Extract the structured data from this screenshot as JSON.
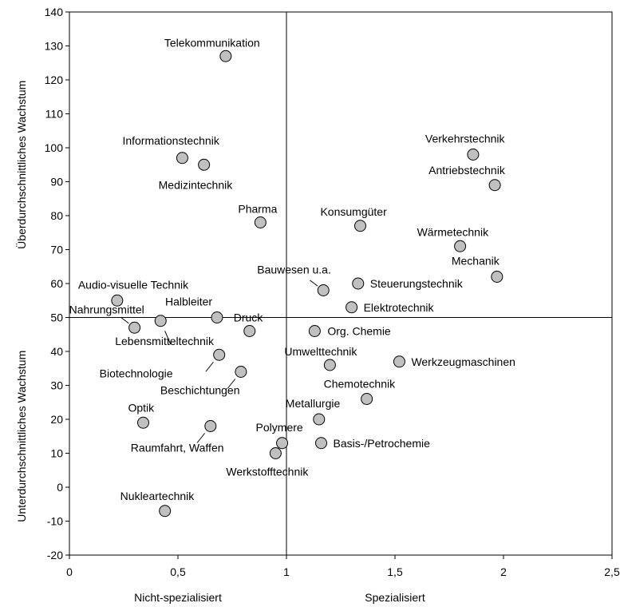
{
  "chart_data": {
    "type": "scatter",
    "xlim": [
      0,
      2.5
    ],
    "ylim": [
      -20,
      140
    ],
    "x_ticks": [
      0,
      0.5,
      1,
      1.5,
      2,
      2.5
    ],
    "x_tick_labels": [
      "0",
      "0,5",
      "1",
      "1,5",
      "2",
      "2,5"
    ],
    "y_ticks": [
      -20,
      -10,
      0,
      10,
      20,
      30,
      40,
      50,
      60,
      70,
      80,
      90,
      100,
      110,
      120,
      130,
      140
    ],
    "reference_lines": {
      "x": 1,
      "y": 50
    },
    "x_axis_labels": {
      "left": "Nicht-spezialisiert",
      "right": "Spezialisiert"
    },
    "y_axis_labels": {
      "upper": "Überdurchschnittliches Wachstum",
      "lower": "Unterdurchschnittliches Wachstum"
    },
    "marker_fill": "#c0c0c0",
    "marker_stroke": "#000000",
    "points": [
      {
        "label": "Telekommunikation",
        "x": 0.72,
        "y": 127
      },
      {
        "label": "Informationstechnik",
        "x": 0.52,
        "y": 97
      },
      {
        "label": "Medizintechnik",
        "x": 0.62,
        "y": 95
      },
      {
        "label": "Pharma",
        "x": 0.88,
        "y": 78
      },
      {
        "label": "Verkehrstechnik",
        "x": 1.86,
        "y": 98
      },
      {
        "label": "Antriebstechnik",
        "x": 1.96,
        "y": 89
      },
      {
        "label": "Konsumgüter",
        "x": 1.34,
        "y": 77
      },
      {
        "label": "Wärmetechnik",
        "x": 1.8,
        "y": 71
      },
      {
        "label": "Mechanik",
        "x": 1.97,
        "y": 62
      },
      {
        "label": "Bauwesen u.a.",
        "x": 1.17,
        "y": 58
      },
      {
        "label": "Steuerungstechnik",
        "x": 1.33,
        "y": 60
      },
      {
        "label": "Elektrotechnik",
        "x": 1.3,
        "y": 53
      },
      {
        "label": "Audio-visuelle Technik",
        "x": 0.22,
        "y": 55
      },
      {
        "label": "Nahrungsmittel",
        "x": 0.3,
        "y": 47
      },
      {
        "label": "Lebensmitteltechnik",
        "x": 0.42,
        "y": 49
      },
      {
        "label": "Halbleiter",
        "x": 0.68,
        "y": 50
      },
      {
        "label": "Druck",
        "x": 0.83,
        "y": 46
      },
      {
        "label": "Org. Chemie",
        "x": 1.13,
        "y": 46
      },
      {
        "label": "Umwelttechnik",
        "x": 1.2,
        "y": 36
      },
      {
        "label": "Werkzeugmaschinen",
        "x": 1.52,
        "y": 37
      },
      {
        "label": "Biotechnologie",
        "x": 0.69,
        "y": 39
      },
      {
        "label": "Beschichtungen",
        "x": 0.79,
        "y": 34
      },
      {
        "label": "Chemotechnik",
        "x": 1.37,
        "y": 26
      },
      {
        "label": "Metallurgie",
        "x": 1.15,
        "y": 20
      },
      {
        "label": "Optik",
        "x": 0.34,
        "y": 19
      },
      {
        "label": "Raumfahrt, Waffen",
        "x": 0.65,
        "y": 18
      },
      {
        "label": "Polymere",
        "x": 0.98,
        "y": 13
      },
      {
        "label": "Basis-/Petrochemie",
        "x": 1.16,
        "y": 13
      },
      {
        "label": "Werkstofftechnik",
        "x": 0.95,
        "y": 10
      },
      {
        "label": "Nukleartechnik",
        "x": 0.44,
        "y": -7
      }
    ]
  }
}
